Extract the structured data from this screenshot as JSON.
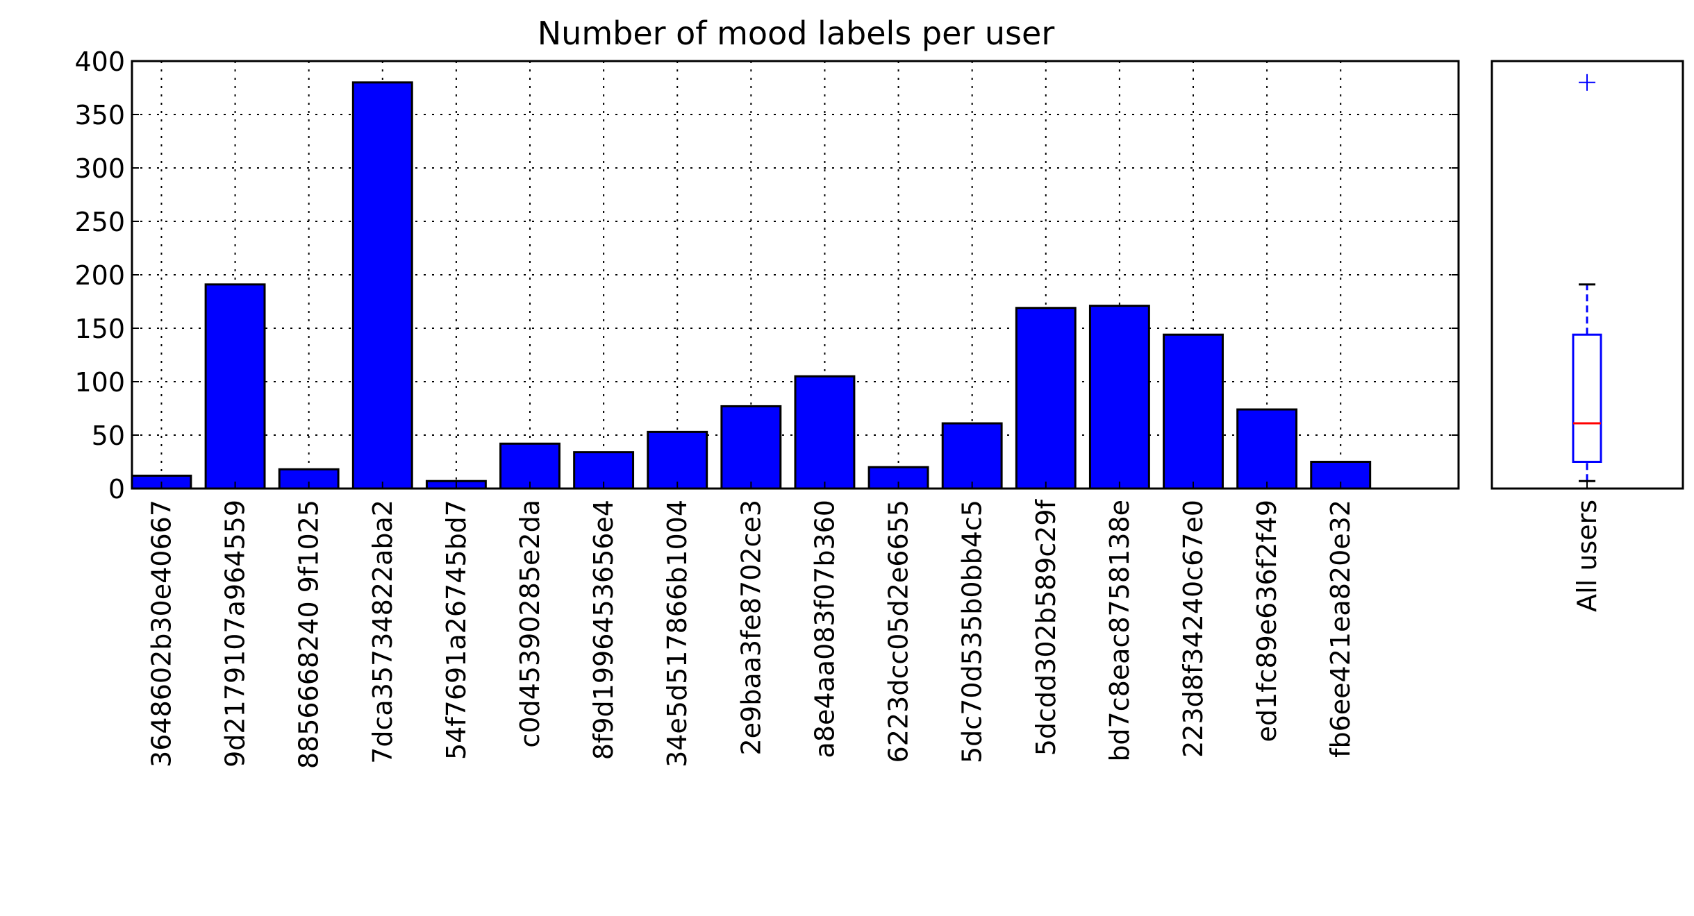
{
  "chart_data": [
    {
      "type": "bar",
      "title": "Number of mood labels per user",
      "xlabel": "",
      "ylabel": "",
      "ylim": [
        0,
        400
      ],
      "yticks": [
        "0",
        "50",
        "100",
        "150",
        "200",
        "250",
        "300",
        "350",
        "400"
      ],
      "grid": true,
      "bar_color": "#0000ff",
      "categories": [
        "3648602b30e40667",
        "9d2179107a964559",
        "8856668240 9f1025",
        "7dca35734822aba2",
        "54f7691a26745bd7",
        "c0d45390285e2da",
        "8f9d1996453656e4",
        "34e5d517866b1004",
        "2e9baa3fe8702ce3",
        "a8e4aa083f07b360",
        "6223dcc05d2e6655",
        "5dc70d535b0bb4c5",
        "5dcdd302b589c29f",
        "bd7c8eac8758138e",
        "223d8f34240c67e0",
        "ed1fc89e636f2f49",
        "fb6ee421ea820e32"
      ],
      "values": [
        12,
        191,
        18,
        380,
        7,
        42,
        34,
        53,
        77,
        105,
        20,
        61,
        169,
        171,
        144,
        74,
        25
      ]
    },
    {
      "type": "box",
      "category": "All users",
      "ylim": [
        0,
        400
      ],
      "q1": 25,
      "median": 61,
      "q3": 144,
      "whisker_low": 7,
      "whisker_high": 191,
      "outliers": [
        380
      ],
      "box_color": "#0000ff",
      "median_color": "#ff0000"
    }
  ]
}
